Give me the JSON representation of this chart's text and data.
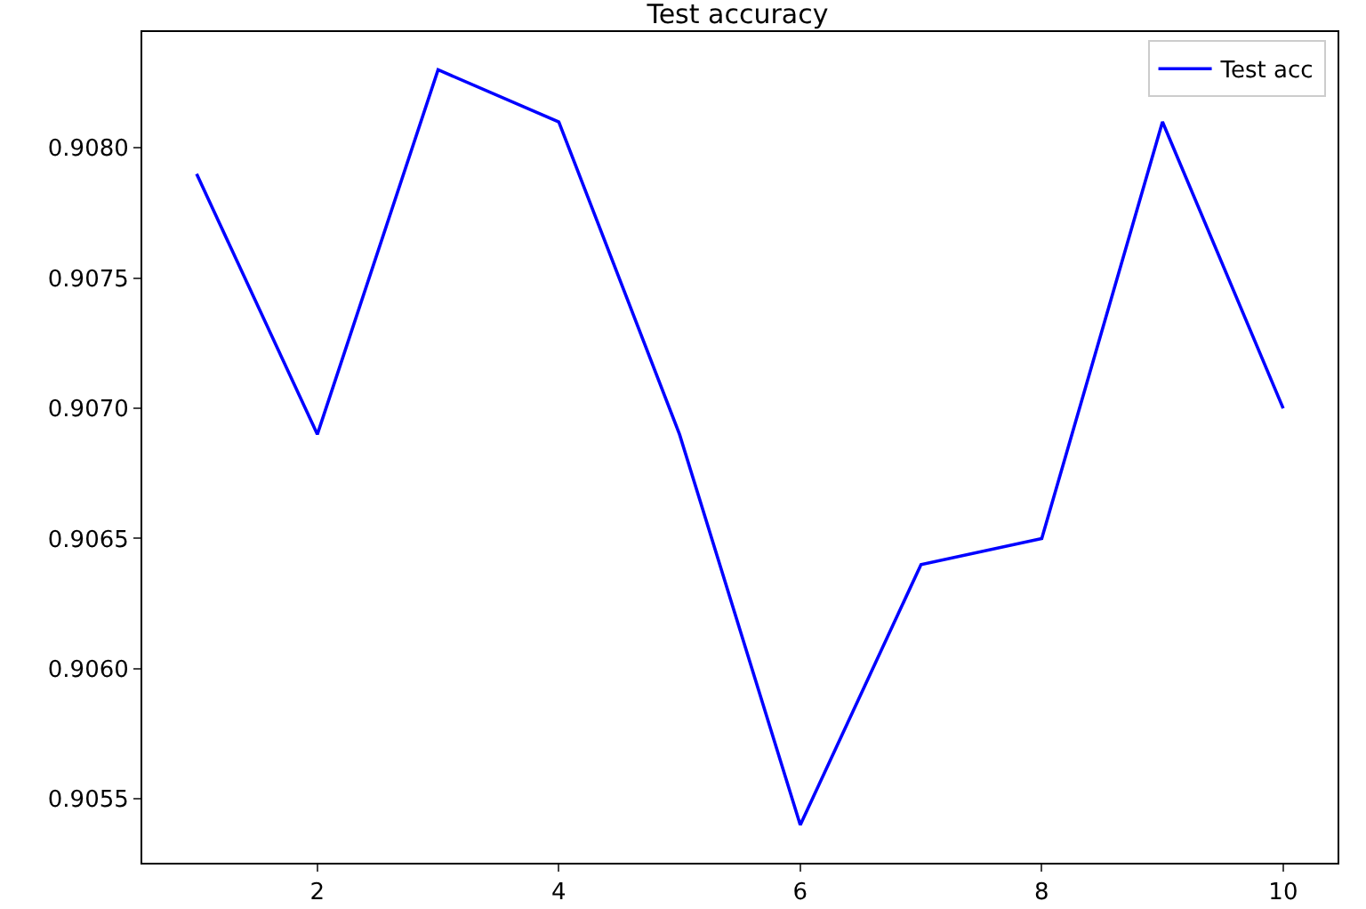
{
  "chart_data": {
    "type": "line",
    "title": "Test accuracy",
    "x": [
      1,
      2,
      3,
      4,
      5,
      6,
      7,
      8,
      9,
      10
    ],
    "series": [
      {
        "name": "Test acc",
        "color": "#0000ff",
        "values": [
          0.9079,
          0.9069,
          0.9083,
          0.9081,
          0.9069,
          0.9054,
          0.9064,
          0.9065,
          0.9081,
          0.907
        ]
      }
    ],
    "xlim": [
      0.55,
      10.45
    ],
    "xticks": [
      2,
      4,
      6,
      8,
      10
    ],
    "ylim": [
      0.905255,
      0.908445
    ],
    "yticks": [
      {
        "value": 0.9055,
        "label": "0.9055"
      },
      {
        "value": 0.906,
        "label": "0.9060"
      },
      {
        "value": 0.9065,
        "label": "0.9065"
      },
      {
        "value": 0.907,
        "label": "0.9070"
      },
      {
        "value": 0.9075,
        "label": "0.9075"
      },
      {
        "value": 0.908,
        "label": "0.9080"
      }
    ],
    "grid": false,
    "legend": "top right",
    "marker": "none",
    "line_style": "solid"
  }
}
